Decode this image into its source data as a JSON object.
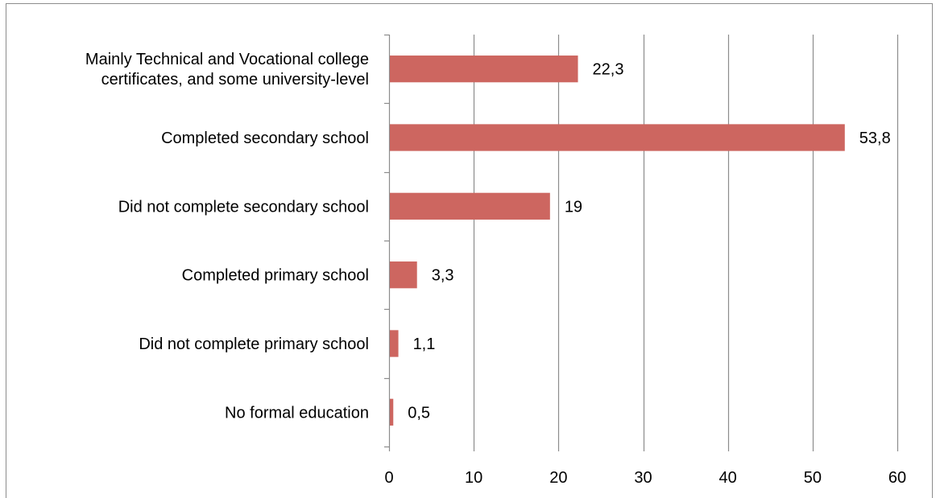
{
  "chart_data": {
    "type": "bar",
    "orientation": "horizontal",
    "categories": [
      [
        "Mainly Technical and Vocational college",
        "certificates, and some university-level"
      ],
      [
        "Completed secondary school"
      ],
      [
        "Did not complete secondary school"
      ],
      [
        "Completed primary school"
      ],
      [
        "Did not complete primary school"
      ],
      [
        "No formal education"
      ]
    ],
    "values": [
      22.3,
      53.8,
      19,
      3.3,
      1.1,
      0.5
    ],
    "data_labels": [
      "22,3",
      "53,8",
      "19",
      "3,3",
      "1,1",
      "0,5"
    ],
    "xlim": [
      0,
      60
    ],
    "xticks": [
      0,
      10,
      20,
      30,
      40,
      50,
      60
    ],
    "title": "",
    "xlabel": "",
    "ylabel": "",
    "grid": "vertical",
    "legend": "none",
    "bar_color": "#cd6660",
    "grid_color": "#8c8c8c",
    "border_color": "#8c8c8c"
  }
}
